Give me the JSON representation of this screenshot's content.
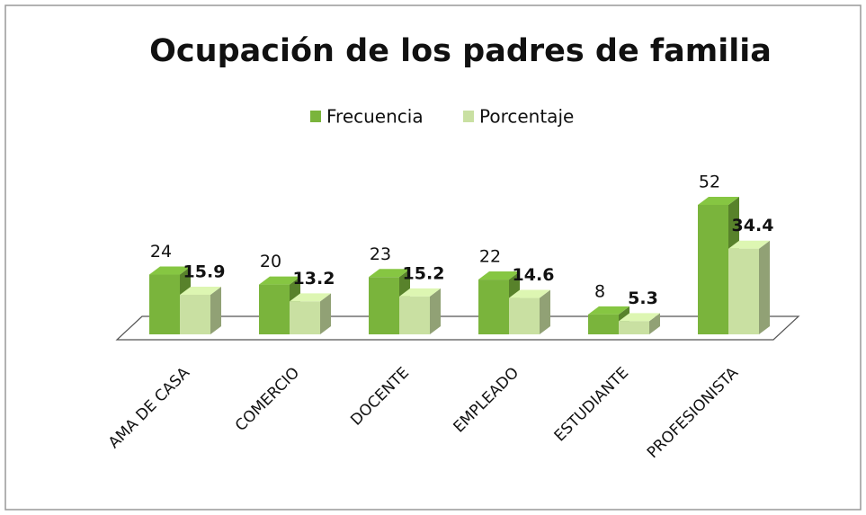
{
  "chart_data": {
    "type": "bar3d",
    "title": "Ocupación de los padres de familia",
    "categories": [
      "AMA DE CASA",
      "COMERCIO",
      "DOCENTE",
      "EMPLEADO",
      "ESTUDIANTE",
      "PROFESIONISTA"
    ],
    "series": [
      {
        "name": "Frecuencia",
        "color": "#7ab43c",
        "values": [
          24,
          20,
          23,
          22,
          8,
          52
        ]
      },
      {
        "name": "Porcentaje",
        "color": "#c9e0a2",
        "values": [
          15.9,
          13.2,
          15.2,
          14.6,
          5.3,
          34.4
        ]
      }
    ],
    "legend": "top"
  }
}
